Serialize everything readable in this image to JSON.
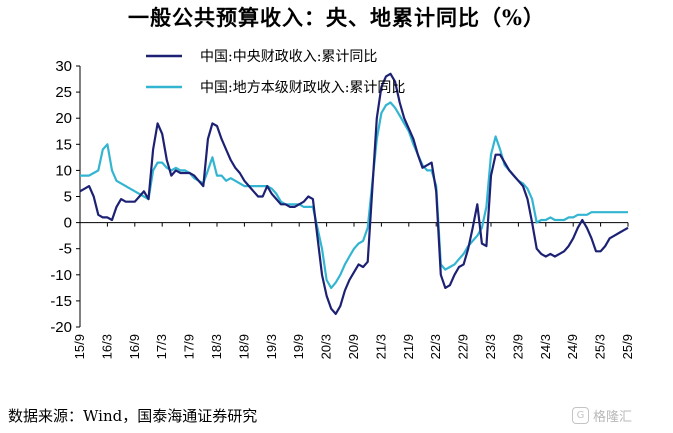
{
  "title": "一般公共预算收入：央、地累计同比（%）",
  "source": "数据来源：Wind，国泰海通证券研究",
  "watermark": {
    "icon": "G",
    "text": "格隆汇"
  },
  "colors": {
    "central": "#1c2173",
    "local": "#33b5d2",
    "axis": "#000000"
  },
  "chart_data": {
    "type": "line",
    "title": "一般公共预算收入：央、地累计同比（%）",
    "xlabel": "",
    "ylabel": "",
    "ylim": [
      -20,
      30
    ],
    "yticks": [
      30,
      25,
      20,
      15,
      10,
      5,
      0,
      -5,
      -10,
      -15,
      -20
    ],
    "xlim": [
      "15/9",
      "25/9"
    ],
    "xticks": [
      "15/9",
      "16/3",
      "16/9",
      "17/3",
      "17/9",
      "18/3",
      "18/9",
      "19/3",
      "19/9",
      "20/3",
      "20/9",
      "21/3",
      "21/9",
      "22/3",
      "22/9",
      "23/3",
      "23/9",
      "24/3",
      "24/9",
      "25/3",
      "25/9"
    ],
    "grid": false,
    "legend_position": "top-center",
    "series": [
      {
        "name": "中国:中央财政收入:累计同比",
        "color": "#1c2173",
        "points": [
          [
            "2015-09",
            6
          ],
          [
            "2015-10",
            6.5
          ],
          [
            "2015-11",
            7
          ],
          [
            "2015-12",
            5
          ],
          [
            "2016-01",
            1.5
          ],
          [
            "2016-02",
            1
          ],
          [
            "2016-03",
            1
          ],
          [
            "2016-04",
            0.5
          ],
          [
            "2016-05",
            3
          ],
          [
            "2016-06",
            4.5
          ],
          [
            "2016-07",
            4
          ],
          [
            "2016-08",
            4
          ],
          [
            "2016-09",
            4
          ],
          [
            "2016-10",
            5
          ],
          [
            "2016-11",
            6
          ],
          [
            "2016-12",
            4.5
          ],
          [
            "2017-01",
            14
          ],
          [
            "2017-02",
            19
          ],
          [
            "2017-03",
            17
          ],
          [
            "2017-04",
            12
          ],
          [
            "2017-05",
            9
          ],
          [
            "2017-06",
            10
          ],
          [
            "2017-07",
            9.5
          ],
          [
            "2017-08",
            9.5
          ],
          [
            "2017-09",
            9.5
          ],
          [
            "2017-10",
            9
          ],
          [
            "2017-11",
            8
          ],
          [
            "2017-12",
            7
          ],
          [
            "2018-01",
            16
          ],
          [
            "2018-02",
            19
          ],
          [
            "2018-03",
            18.5
          ],
          [
            "2018-04",
            16
          ],
          [
            "2018-05",
            14
          ],
          [
            "2018-06",
            12
          ],
          [
            "2018-07",
            10.5
          ],
          [
            "2018-08",
            9.5
          ],
          [
            "2018-09",
            8
          ],
          [
            "2018-10",
            7
          ],
          [
            "2018-11",
            6
          ],
          [
            "2018-12",
            5
          ],
          [
            "2019-01",
            5
          ],
          [
            "2019-02",
            7
          ],
          [
            "2019-03",
            5.5
          ],
          [
            "2019-04",
            4.5
          ],
          [
            "2019-05",
            3.5
          ],
          [
            "2019-06",
            3.5
          ],
          [
            "2019-07",
            3
          ],
          [
            "2019-08",
            3
          ],
          [
            "2019-09",
            3.5
          ],
          [
            "2019-10",
            4
          ],
          [
            "2019-11",
            5
          ],
          [
            "2019-12",
            4.5
          ],
          [
            "2020-02",
            -10
          ],
          [
            "2020-03",
            -14
          ],
          [
            "2020-04",
            -16.5
          ],
          [
            "2020-05",
            -17.5
          ],
          [
            "2020-06",
            -16
          ],
          [
            "2020-07",
            -13
          ],
          [
            "2020-08",
            -11
          ],
          [
            "2020-09",
            -9.5
          ],
          [
            "2020-10",
            -8
          ],
          [
            "2020-11",
            -8.5
          ],
          [
            "2020-12",
            -7.5
          ],
          [
            "2021-02",
            20
          ],
          [
            "2021-03",
            26
          ],
          [
            "2021-04",
            28
          ],
          [
            "2021-05",
            28.5
          ],
          [
            "2021-06",
            27
          ],
          [
            "2021-07",
            23
          ],
          [
            "2021-08",
            20
          ],
          [
            "2021-09",
            18
          ],
          [
            "2021-10",
            16
          ],
          [
            "2021-11",
            13
          ],
          [
            "2021-12",
            10.5
          ],
          [
            "2022-01",
            11
          ],
          [
            "2022-02",
            11.5
          ],
          [
            "2022-03",
            6
          ],
          [
            "2022-04",
            -10
          ],
          [
            "2022-05",
            -12.5
          ],
          [
            "2022-06",
            -12
          ],
          [
            "2022-07",
            -10
          ],
          [
            "2022-08",
            -8.5
          ],
          [
            "2022-09",
            -8
          ],
          [
            "2022-10",
            -5
          ],
          [
            "2022-11",
            -1
          ],
          [
            "2022-12",
            3.5
          ],
          [
            "2023-01",
            -4
          ],
          [
            "2023-02",
            -4.5
          ],
          [
            "2023-03",
            9
          ],
          [
            "2023-04",
            13
          ],
          [
            "2023-05",
            13
          ],
          [
            "2023-06",
            11.5
          ],
          [
            "2023-07",
            10
          ],
          [
            "2023-08",
            9
          ],
          [
            "2023-09",
            8
          ],
          [
            "2023-10",
            7
          ],
          [
            "2023-11",
            4.5
          ],
          [
            "2023-12",
            0
          ],
          [
            "2024-01",
            -5
          ],
          [
            "2024-02",
            -6
          ],
          [
            "2024-03",
            -6.5
          ],
          [
            "2024-04",
            -6
          ],
          [
            "2024-05",
            -6.5
          ],
          [
            "2024-06",
            -6
          ],
          [
            "2024-07",
            -5.5
          ],
          [
            "2024-08",
            -4.5
          ],
          [
            "2024-09",
            -3
          ],
          [
            "2024-10",
            -1
          ],
          [
            "2024-11",
            0.5
          ],
          [
            "2024-12",
            -1
          ],
          [
            "2025-01",
            -3
          ],
          [
            "2025-02",
            -5.5
          ],
          [
            "2025-03",
            -5.5
          ],
          [
            "2025-04",
            -4.5
          ],
          [
            "2025-05",
            -3
          ],
          [
            "2025-06",
            -2.5
          ],
          [
            "2025-07",
            -2
          ],
          [
            "2025-08",
            -1.5
          ],
          [
            "2025-09",
            -1
          ]
        ]
      },
      {
        "name": "中国:地方本级财政收入:累计同比",
        "color": "#33b5d2",
        "points": [
          [
            "2015-09",
            9
          ],
          [
            "2015-10",
            9
          ],
          [
            "2015-11",
            9
          ],
          [
            "2015-12",
            9.5
          ],
          [
            "2016-01",
            10
          ],
          [
            "2016-02",
            14
          ],
          [
            "2016-03",
            15
          ],
          [
            "2016-04",
            10
          ],
          [
            "2016-05",
            8
          ],
          [
            "2016-06",
            7.5
          ],
          [
            "2016-07",
            7
          ],
          [
            "2016-08",
            6.5
          ],
          [
            "2016-09",
            6
          ],
          [
            "2016-10",
            5.5
          ],
          [
            "2016-11",
            5
          ],
          [
            "2016-12",
            4.5
          ],
          [
            "2017-01",
            10
          ],
          [
            "2017-02",
            11.5
          ],
          [
            "2017-03",
            11.5
          ],
          [
            "2017-04",
            10.5
          ],
          [
            "2017-05",
            10
          ],
          [
            "2017-06",
            10.5
          ],
          [
            "2017-07",
            10
          ],
          [
            "2017-08",
            10
          ],
          [
            "2017-09",
            9.5
          ],
          [
            "2017-10",
            8.5
          ],
          [
            "2017-11",
            8
          ],
          [
            "2017-12",
            7.5
          ],
          [
            "2018-01",
            10
          ],
          [
            "2018-02",
            12.5
          ],
          [
            "2018-03",
            9
          ],
          [
            "2018-04",
            9
          ],
          [
            "2018-05",
            8
          ],
          [
            "2018-06",
            8.5
          ],
          [
            "2018-07",
            8
          ],
          [
            "2018-08",
            7.5
          ],
          [
            "2018-09",
            7
          ],
          [
            "2018-10",
            7
          ],
          [
            "2018-11",
            7
          ],
          [
            "2018-12",
            7
          ],
          [
            "2019-01",
            7
          ],
          [
            "2019-02",
            7
          ],
          [
            "2019-03",
            6.5
          ],
          [
            "2019-04",
            5.5
          ],
          [
            "2019-05",
            4
          ],
          [
            "2019-06",
            3.5
          ],
          [
            "2019-07",
            3.5
          ],
          [
            "2019-08",
            3.5
          ],
          [
            "2019-09",
            3.5
          ],
          [
            "2019-10",
            3
          ],
          [
            "2019-11",
            3
          ],
          [
            "2019-12",
            3
          ],
          [
            "2020-02",
            -5
          ],
          [
            "2020-03",
            -11
          ],
          [
            "2020-04",
            -12.5
          ],
          [
            "2020-05",
            -11.5
          ],
          [
            "2020-06",
            -10
          ],
          [
            "2020-07",
            -8
          ],
          [
            "2020-08",
            -6.5
          ],
          [
            "2020-09",
            -5
          ],
          [
            "2020-10",
            -4
          ],
          [
            "2020-11",
            -3.5
          ],
          [
            "2020-12",
            -1
          ],
          [
            "2021-02",
            16
          ],
          [
            "2021-03",
            21
          ],
          [
            "2021-04",
            22.5
          ],
          [
            "2021-05",
            23
          ],
          [
            "2021-06",
            22
          ],
          [
            "2021-07",
            20.5
          ],
          [
            "2021-08",
            19
          ],
          [
            "2021-09",
            17.5
          ],
          [
            "2021-10",
            15
          ],
          [
            "2021-11",
            13
          ],
          [
            "2021-12",
            11
          ],
          [
            "2022-01",
            10
          ],
          [
            "2022-02",
            10
          ],
          [
            "2022-03",
            7
          ],
          [
            "2022-04",
            -8
          ],
          [
            "2022-05",
            -9
          ],
          [
            "2022-06",
            -8.5
          ],
          [
            "2022-07",
            -8
          ],
          [
            "2022-08",
            -7
          ],
          [
            "2022-09",
            -6
          ],
          [
            "2022-10",
            -4.5
          ],
          [
            "2022-11",
            -3.5
          ],
          [
            "2022-12",
            -2.5
          ],
          [
            "2023-01",
            -1
          ],
          [
            "2023-02",
            3
          ],
          [
            "2023-03",
            13
          ],
          [
            "2023-04",
            16.5
          ],
          [
            "2023-05",
            14
          ],
          [
            "2023-06",
            11
          ],
          [
            "2023-07",
            10
          ],
          [
            "2023-08",
            9
          ],
          [
            "2023-09",
            8
          ],
          [
            "2023-10",
            7.5
          ],
          [
            "2023-11",
            6.5
          ],
          [
            "2023-12",
            4.5
          ],
          [
            "2024-01",
            0
          ],
          [
            "2024-02",
            0.5
          ],
          [
            "2024-03",
            0.5
          ],
          [
            "2024-04",
            1
          ],
          [
            "2024-05",
            0.5
          ],
          [
            "2024-06",
            0.5
          ],
          [
            "2024-07",
            0.5
          ],
          [
            "2024-08",
            1
          ],
          [
            "2024-09",
            1
          ],
          [
            "2024-10",
            1.5
          ],
          [
            "2024-11",
            1.5
          ],
          [
            "2024-12",
            1.5
          ],
          [
            "2025-01",
            2
          ],
          [
            "2025-02",
            2
          ],
          [
            "2025-03",
            2
          ],
          [
            "2025-04",
            2
          ],
          [
            "2025-05",
            2
          ],
          [
            "2025-06",
            2
          ],
          [
            "2025-07",
            2
          ],
          [
            "2025-08",
            2
          ],
          [
            "2025-09",
            2
          ]
        ]
      }
    ]
  }
}
